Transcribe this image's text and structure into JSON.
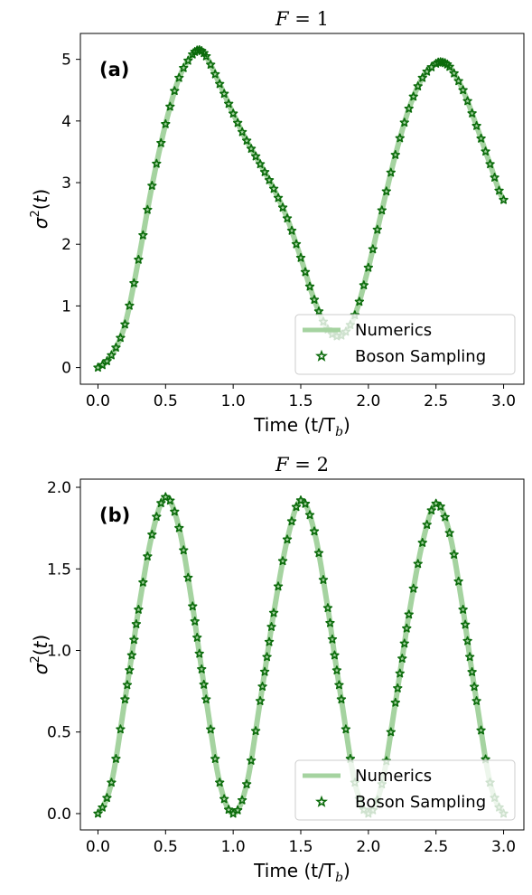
{
  "chart_data": [
    {
      "type": "line",
      "title_prefix": "F",
      "title_value": "1",
      "panel_label": "(a)",
      "xlabel": "Time (t/T",
      "xlabel_sub": "b",
      "ylabel": "σ",
      "xlim": [
        -0.13,
        3.15
      ],
      "ylim": [
        -0.27,
        5.42
      ],
      "xticks": [
        0.0,
        0.5,
        1.0,
        1.5,
        2.0,
        2.5,
        3.0
      ],
      "xtick_labels": [
        "0.0",
        "0.5",
        "1.0",
        "1.5",
        "2.0",
        "2.5",
        "3.0"
      ],
      "yticks": [
        0,
        1,
        2,
        3,
        4,
        5
      ],
      "ytick_labels": [
        "0",
        "1",
        "2",
        "3",
        "4",
        "5"
      ],
      "legend_position": "lower-right",
      "series": [
        {
          "name": "Numerics",
          "style": "line",
          "color": "#a5d3a0",
          "x": [
            0.0,
            0.1,
            0.2,
            0.3,
            0.4,
            0.5,
            0.6,
            0.7,
            0.75,
            0.8,
            0.9,
            1.0,
            1.1,
            1.2,
            1.3,
            1.4,
            1.5,
            1.6,
            1.7,
            1.8,
            1.9,
            2.0,
            2.1,
            2.2,
            2.3,
            2.4,
            2.5,
            2.55,
            2.6,
            2.7,
            2.8,
            2.9,
            3.0
          ],
          "y": [
            0.0,
            0.2,
            0.7,
            1.75,
            2.95,
            3.95,
            4.7,
            5.08,
            5.15,
            5.05,
            4.6,
            4.12,
            3.68,
            3.3,
            2.9,
            2.42,
            1.78,
            1.1,
            0.62,
            0.52,
            0.85,
            1.62,
            2.55,
            3.45,
            4.2,
            4.7,
            4.93,
            4.95,
            4.88,
            4.5,
            3.92,
            3.3,
            2.72
          ]
        },
        {
          "name": "Boson Sampling",
          "style": "markers",
          "color": "#0b6b0b",
          "x": [
            0.0,
            0.1,
            0.2,
            0.3,
            0.4,
            0.5,
            0.6,
            0.7,
            0.75,
            0.8,
            0.9,
            1.0,
            1.1,
            1.2,
            1.3,
            1.4,
            1.5,
            1.6,
            1.7,
            1.8,
            1.9,
            2.0,
            2.1,
            2.2,
            2.3,
            2.4,
            2.5,
            2.55,
            2.6,
            2.7,
            2.8,
            2.9,
            3.0
          ],
          "y": [
            0.0,
            0.2,
            0.7,
            1.75,
            2.95,
            3.95,
            4.7,
            5.08,
            5.15,
            5.05,
            4.6,
            4.12,
            3.68,
            3.3,
            2.9,
            2.42,
            1.78,
            1.1,
            0.62,
            0.52,
            0.85,
            1.62,
            2.55,
            3.45,
            4.2,
            4.7,
            4.93,
            4.95,
            4.88,
            4.5,
            3.92,
            3.3,
            2.72
          ]
        }
      ]
    },
    {
      "type": "line",
      "title_prefix": "F",
      "title_value": "2",
      "panel_label": "(b)",
      "xlabel": "Time (t/T",
      "xlabel_sub": "b",
      "ylabel": "σ",
      "xlim": [
        -0.13,
        3.15
      ],
      "ylim": [
        -0.1,
        2.05
      ],
      "xticks": [
        0.0,
        0.5,
        1.0,
        1.5,
        2.0,
        2.5,
        3.0
      ],
      "xtick_labels": [
        "0.0",
        "0.5",
        "1.0",
        "1.5",
        "2.0",
        "2.5",
        "3.0"
      ],
      "yticks": [
        0.0,
        0.5,
        1.0,
        1.5,
        2.0
      ],
      "ytick_labels": [
        "0.0",
        "0.5",
        "1.0",
        "1.5",
        "2.0"
      ],
      "legend_position": "lower-right",
      "series": [
        {
          "name": "Numerics",
          "style": "line",
          "color": "#a5d3a0",
          "x": [
            0.0,
            0.1,
            0.2,
            0.25,
            0.3,
            0.4,
            0.5,
            0.6,
            0.7,
            0.75,
            0.8,
            0.9,
            1.0,
            1.1,
            1.2,
            1.25,
            1.3,
            1.4,
            1.5,
            1.6,
            1.7,
            1.75,
            1.8,
            1.9,
            2.0,
            2.1,
            2.2,
            2.25,
            2.3,
            2.4,
            2.5,
            2.6,
            2.7,
            2.75,
            2.8,
            2.9,
            3.0
          ],
          "y": [
            0.0,
            0.19,
            0.7,
            0.97,
            1.25,
            1.71,
            1.94,
            1.75,
            1.27,
            0.98,
            0.7,
            0.19,
            0.0,
            0.18,
            0.69,
            0.96,
            1.23,
            1.68,
            1.92,
            1.73,
            1.26,
            0.97,
            0.7,
            0.19,
            0.0,
            0.18,
            0.68,
            0.95,
            1.22,
            1.66,
            1.9,
            1.72,
            1.25,
            0.96,
            0.69,
            0.19,
            0.0
          ]
        },
        {
          "name": "Boson Sampling",
          "style": "markers",
          "color": "#0b6b0b",
          "x": [
            0.0,
            0.1,
            0.2,
            0.25,
            0.3,
            0.4,
            0.5,
            0.6,
            0.7,
            0.75,
            0.8,
            0.9,
            1.0,
            1.1,
            1.2,
            1.25,
            1.3,
            1.4,
            1.5,
            1.6,
            1.7,
            1.75,
            1.8,
            1.9,
            2.0,
            2.1,
            2.2,
            2.25,
            2.3,
            2.4,
            2.5,
            2.6,
            2.7,
            2.75,
            2.8,
            2.9,
            3.0
          ],
          "y": [
            0.0,
            0.19,
            0.7,
            0.97,
            1.25,
            1.71,
            1.94,
            1.75,
            1.27,
            0.98,
            0.7,
            0.19,
            0.0,
            0.18,
            0.69,
            0.96,
            1.23,
            1.68,
            1.92,
            1.73,
            1.26,
            0.97,
            0.7,
            0.19,
            0.0,
            0.18,
            0.68,
            0.95,
            1.22,
            1.66,
            1.9,
            1.72,
            1.25,
            0.96,
            0.69,
            0.19,
            0.0
          ]
        }
      ]
    }
  ]
}
